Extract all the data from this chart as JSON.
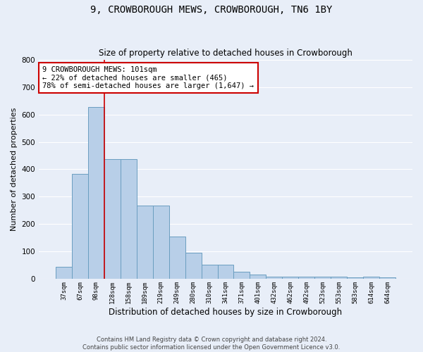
{
  "title": "9, CROWBOROUGH MEWS, CROWBOROUGH, TN6 1BY",
  "subtitle": "Size of property relative to detached houses in Crowborough",
  "xlabel": "Distribution of detached houses by size in Crowborough",
  "ylabel": "Number of detached properties",
  "categories": [
    "37sqm",
    "67sqm",
    "98sqm",
    "128sqm",
    "158sqm",
    "189sqm",
    "219sqm",
    "249sqm",
    "280sqm",
    "310sqm",
    "341sqm",
    "371sqm",
    "401sqm",
    "432sqm",
    "462sqm",
    "492sqm",
    "523sqm",
    "553sqm",
    "583sqm",
    "614sqm",
    "644sqm"
  ],
  "values": [
    45,
    383,
    627,
    437,
    437,
    268,
    268,
    155,
    95,
    52,
    52,
    28,
    17,
    10,
    10,
    10,
    10,
    10,
    5,
    10,
    5
  ],
  "bar_color": "#b8cfe8",
  "bar_edge_color": "#6a9ec0",
  "red_line_x": 2.5,
  "annotation_text": "9 CROWBOROUGH MEWS: 101sqm\n← 22% of detached houses are smaller (465)\n78% of semi-detached houses are larger (1,647) →",
  "annotation_box_color": "#ffffff",
  "annotation_box_edge_color": "#cc0000",
  "ylim": [
    0,
    800
  ],
  "yticks": [
    0,
    100,
    200,
    300,
    400,
    500,
    600,
    700,
    800
  ],
  "background_color": "#e8eef8",
  "grid_color": "#ffffff",
  "footer": "Contains HM Land Registry data © Crown copyright and database right 2024.\nContains public sector information licensed under the Open Government Licence v3.0."
}
